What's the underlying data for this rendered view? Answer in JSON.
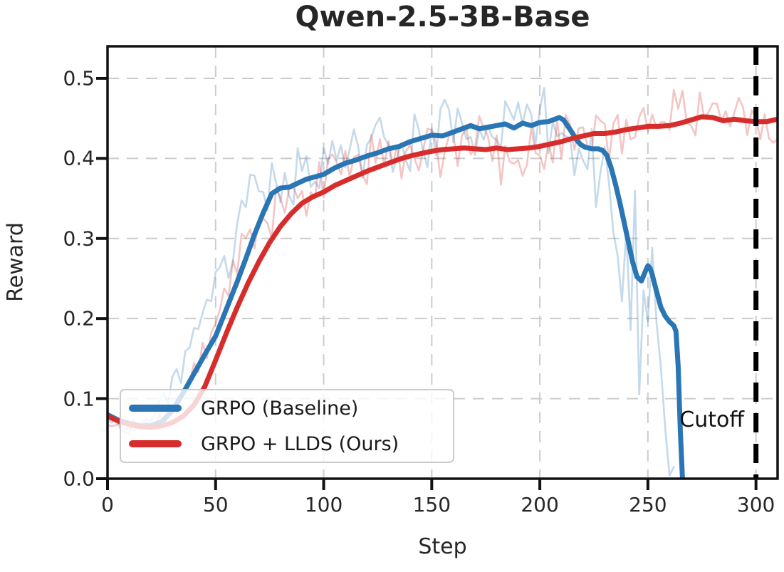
{
  "title": "Qwen-2.5-3B-Base",
  "cutoff": {
    "label": "Cutoff",
    "x": 300
  },
  "legend": {
    "position": "lower left",
    "items": [
      {
        "label": "GRPO (Baseline)"
      },
      {
        "label": "GRPO + LLDS (Ours)"
      }
    ]
  },
  "chart_data": {
    "type": "line",
    "title": "Qwen-2.5-3B-Base",
    "xlabel": "Step",
    "ylabel": "Reward",
    "xlim": [
      0,
      310
    ],
    "ylim": [
      0,
      0.54
    ],
    "grid": true,
    "grid_style": "dashed",
    "grid_color": "#cccccc",
    "xticks": [
      0,
      50,
      100,
      150,
      200,
      250,
      300
    ],
    "xtick_labels": [
      "0",
      "50",
      "100",
      "150",
      "200",
      "250",
      "300"
    ],
    "yticks": [
      0.0,
      0.1,
      0.2,
      0.3,
      0.4,
      0.5
    ],
    "ytick_labels": [
      "0.0",
      "0.1",
      "0.2",
      "0.3",
      "0.4",
      "0.5"
    ],
    "cutoff_line": {
      "x": 300,
      "color": "#000000",
      "style": "dashed",
      "label": "Cutoff"
    },
    "series": [
      {
        "name": "GRPO (Baseline)",
        "color": "#2a76b4",
        "width": 7,
        "points": [
          [
            0,
            0.08
          ],
          [
            5,
            0.073
          ],
          [
            10,
            0.069
          ],
          [
            15,
            0.066
          ],
          [
            20,
            0.066
          ],
          [
            25,
            0.071
          ],
          [
            30,
            0.085
          ],
          [
            35,
            0.107
          ],
          [
            40,
            0.131
          ],
          [
            45,
            0.155
          ],
          [
            50,
            0.178
          ],
          [
            55,
            0.212
          ],
          [
            60,
            0.246
          ],
          [
            64,
            0.275
          ],
          [
            68,
            0.305
          ],
          [
            72,
            0.332
          ],
          [
            76,
            0.356
          ],
          [
            80,
            0.363
          ],
          [
            84,
            0.364
          ],
          [
            88,
            0.369
          ],
          [
            92,
            0.374
          ],
          [
            96,
            0.377
          ],
          [
            100,
            0.38
          ],
          [
            105,
            0.388
          ],
          [
            110,
            0.394
          ],
          [
            115,
            0.398
          ],
          [
            120,
            0.403
          ],
          [
            125,
            0.407
          ],
          [
            130,
            0.412
          ],
          [
            135,
            0.415
          ],
          [
            140,
            0.421
          ],
          [
            145,
            0.425
          ],
          [
            150,
            0.429
          ],
          [
            155,
            0.428
          ],
          [
            160,
            0.433
          ],
          [
            164,
            0.437
          ],
          [
            168,
            0.441
          ],
          [
            172,
            0.437
          ],
          [
            176,
            0.439
          ],
          [
            180,
            0.441
          ],
          [
            184,
            0.443
          ],
          [
            188,
            0.438
          ],
          [
            192,
            0.444
          ],
          [
            196,
            0.441
          ],
          [
            200,
            0.445
          ],
          [
            204,
            0.446
          ],
          [
            207,
            0.449
          ],
          [
            209,
            0.451
          ],
          [
            211,
            0.448
          ],
          [
            213,
            0.44
          ],
          [
            215,
            0.432
          ],
          [
            217,
            0.423
          ],
          [
            219,
            0.417
          ],
          [
            221,
            0.414
          ],
          [
            224,
            0.412
          ],
          [
            227,
            0.412
          ],
          [
            229,
            0.41
          ],
          [
            231,
            0.404
          ],
          [
            233,
            0.388
          ],
          [
            235,
            0.368
          ],
          [
            237,
            0.345
          ],
          [
            239,
            0.32
          ],
          [
            241,
            0.295
          ],
          [
            243,
            0.27
          ],
          [
            245,
            0.252
          ],
          [
            247,
            0.247
          ],
          [
            249,
            0.26
          ],
          [
            250,
            0.266
          ],
          [
            251,
            0.263
          ],
          [
            252,
            0.255
          ],
          [
            254,
            0.234
          ],
          [
            256,
            0.214
          ],
          [
            258,
            0.203
          ],
          [
            260,
            0.196
          ],
          [
            262,
            0.191
          ],
          [
            263,
            0.184
          ],
          [
            264,
            0.14
          ],
          [
            265,
            0.06
          ],
          [
            266,
            0.0
          ]
        ],
        "raw_overlay": {
          "alpha": 0.28,
          "width": 2.6,
          "lead": 8,
          "seed": 3,
          "end": 262,
          "step": 2,
          "amp": [
            [
              0,
              0.01
            ],
            [
              30,
              0.018
            ],
            [
              45,
              0.03
            ],
            [
              60,
              0.038
            ],
            [
              80,
              0.04
            ],
            [
              100,
              0.038
            ],
            [
              130,
              0.04
            ],
            [
              160,
              0.042
            ],
            [
              200,
              0.04
            ],
            [
              222,
              0.045
            ],
            [
              228,
              0.075
            ],
            [
              235,
              0.13
            ],
            [
              242,
              0.15
            ],
            [
              250,
              0.14
            ],
            [
              256,
              0.12
            ],
            [
              262,
              0.09
            ]
          ]
        }
      },
      {
        "name": "GRPO + LLDS (Ours)",
        "color": "#d62d2c",
        "width": 7,
        "points": [
          [
            0,
            0.078
          ],
          [
            5,
            0.072
          ],
          [
            10,
            0.068
          ],
          [
            15,
            0.065
          ],
          [
            20,
            0.064
          ],
          [
            25,
            0.066
          ],
          [
            30,
            0.07
          ],
          [
            35,
            0.078
          ],
          [
            40,
            0.092
          ],
          [
            45,
            0.115
          ],
          [
            50,
            0.148
          ],
          [
            55,
            0.182
          ],
          [
            60,
            0.214
          ],
          [
            65,
            0.244
          ],
          [
            70,
            0.271
          ],
          [
            75,
            0.295
          ],
          [
            80,
            0.315
          ],
          [
            85,
            0.331
          ],
          [
            90,
            0.344
          ],
          [
            95,
            0.352
          ],
          [
            100,
            0.358
          ],
          [
            105,
            0.366
          ],
          [
            110,
            0.372
          ],
          [
            115,
            0.378
          ],
          [
            120,
            0.384
          ],
          [
            125,
            0.389
          ],
          [
            130,
            0.394
          ],
          [
            135,
            0.399
          ],
          [
            140,
            0.403
          ],
          [
            145,
            0.406
          ],
          [
            150,
            0.409
          ],
          [
            155,
            0.411
          ],
          [
            160,
            0.412
          ],
          [
            165,
            0.413
          ],
          [
            170,
            0.412
          ],
          [
            175,
            0.411
          ],
          [
            180,
            0.413
          ],
          [
            185,
            0.411
          ],
          [
            190,
            0.412
          ],
          [
            195,
            0.413
          ],
          [
            200,
            0.415
          ],
          [
            205,
            0.418
          ],
          [
            210,
            0.421
          ],
          [
            215,
            0.425
          ],
          [
            220,
            0.428
          ],
          [
            225,
            0.431
          ],
          [
            230,
            0.431
          ],
          [
            235,
            0.433
          ],
          [
            240,
            0.436
          ],
          [
            245,
            0.438
          ],
          [
            250,
            0.44
          ],
          [
            255,
            0.44
          ],
          [
            260,
            0.441
          ],
          [
            265,
            0.444
          ],
          [
            270,
            0.448
          ],
          [
            275,
            0.452
          ],
          [
            280,
            0.451
          ],
          [
            285,
            0.447
          ],
          [
            290,
            0.449
          ],
          [
            295,
            0.447
          ],
          [
            300,
            0.446
          ],
          [
            305,
            0.446
          ],
          [
            310,
            0.449
          ]
        ],
        "raw_overlay": {
          "alpha": 0.28,
          "width": 2.6,
          "lead": 8,
          "seed": 11,
          "end": 310,
          "step": 2,
          "amp": [
            [
              0,
              0.007
            ],
            [
              30,
              0.012
            ],
            [
              45,
              0.022
            ],
            [
              60,
              0.03
            ],
            [
              90,
              0.04
            ],
            [
              120,
              0.038
            ],
            [
              150,
              0.036
            ],
            [
              180,
              0.042
            ],
            [
              210,
              0.04
            ],
            [
              240,
              0.036
            ],
            [
              270,
              0.038
            ],
            [
              310,
              0.032
            ]
          ]
        }
      }
    ]
  }
}
